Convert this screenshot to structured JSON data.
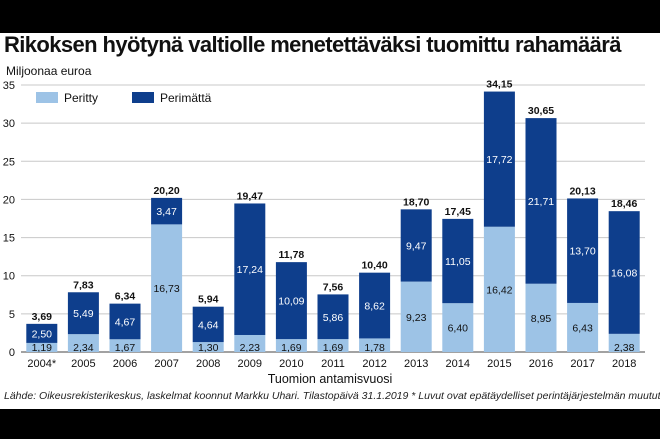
{
  "header": {
    "title": "Rikoksen hyötynä valtiolle menetettäväksi tuomittu rahamäärä",
    "unit": "Miljoonaa euroa"
  },
  "footer": {
    "source": "Lähde: Oikeusrekisterikeskus, laskelmat koonnut Markku Uhari. Tilastopäivä 31.1.2019 * Luvut ovat epätäydelliset perintäjärjestelmän muututtua."
  },
  "chart_data": {
    "type": "bar",
    "stacked": true,
    "categories": [
      "2004*",
      "2005",
      "2006",
      "2007",
      "2008",
      "2009",
      "2010",
      "2011",
      "2012",
      "2013",
      "2014",
      "2015",
      "2016",
      "2017",
      "2018"
    ],
    "series": [
      {
        "name": "Perittу",
        "color": "#9dc3e6",
        "values": [
          1.19,
          2.34,
          1.67,
          16.73,
          1.3,
          2.23,
          1.69,
          1.69,
          1.78,
          9.23,
          6.4,
          16.42,
          8.95,
          6.43,
          2.38
        ]
      },
      {
        "name": "Perimättä",
        "color": "#0e3e8c",
        "values": [
          2.5,
          5.49,
          4.67,
          3.47,
          4.64,
          17.24,
          10.09,
          5.86,
          8.62,
          9.47,
          11.05,
          17.72,
          21.71,
          13.7,
          16.08
        ]
      }
    ],
    "totals": [
      "3,69",
      "7,83",
      "6,34",
      "20,20",
      "5,94",
      "19,47",
      "11,78",
      "7,56",
      "10,40",
      "18,70",
      "17,45",
      "34,15",
      "30,65",
      "20,13",
      "18,46"
    ],
    "labels_perittu": [
      "1,19",
      "2,34",
      "1,67",
      "16,73",
      "1,30",
      "2,23",
      "1,69",
      "1,69",
      "1,78",
      "9,23",
      "6,40",
      "16,42",
      "8,95",
      "6,43",
      "2,38"
    ],
    "labels_perimatta": [
      "2,50",
      "5,49",
      "4,67",
      "3,47",
      "4,64",
      "17,24",
      "10,09",
      "5,86",
      "8,62",
      "9,47",
      "11,05",
      "17,72",
      "21,71",
      "13,70",
      "16,08"
    ],
    "xlabel": "Tuomion antamisvuosi",
    "ylabel": "Miljoonaa euroa",
    "ylim": [
      0,
      35
    ],
    "yticks": [
      0,
      5,
      10,
      15,
      20,
      25,
      30,
      35
    ],
    "grid": true,
    "legend_position": "top-left"
  }
}
